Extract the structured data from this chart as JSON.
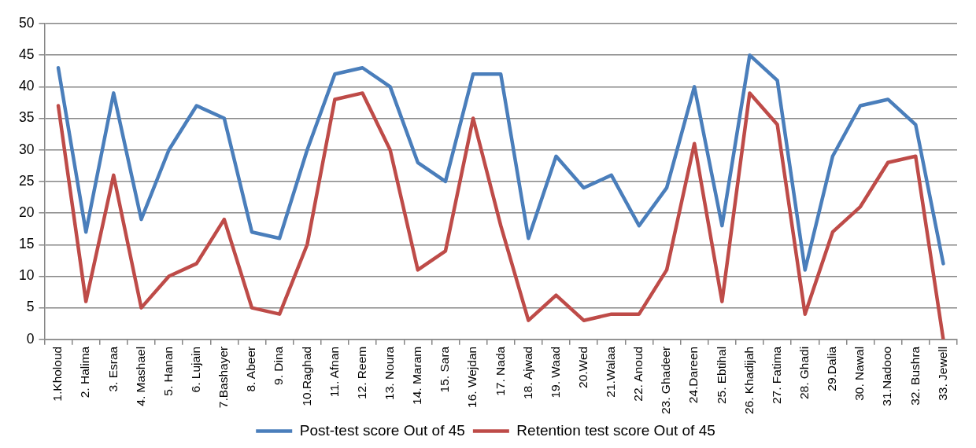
{
  "chart_data": {
    "type": "line",
    "categories": [
      "1.Kholoud",
      "2. Halima",
      "3. Esraa",
      "4. Mashael",
      "5. Hanan",
      "6. Lujain",
      "7.Bashayer",
      "8. Abeer",
      "9. Dina",
      "10.Raghad",
      "11. Afnan",
      "12. Reem",
      "13. Noura",
      "14. Maram",
      "15. Sara",
      "16. Wejdan",
      "17. Nada",
      "18. Ajwad",
      "19. Waad",
      "20.Wed",
      "21.Walaa",
      "22. Anoud",
      "23. Ghadeer",
      "24.Dareen",
      "25. Ebtihal",
      "26. Khadijah",
      "27. Fatima",
      "28. Ghadi",
      "29.Dalia",
      "30. Nawal",
      "31.Nadooo",
      "32. Bushra",
      "33. Jewell"
    ],
    "series": [
      {
        "name": "Post-test score Out of 45",
        "color": "#4a7ebb",
        "values": [
          43,
          17,
          39,
          19,
          30,
          37,
          35,
          17,
          16,
          30,
          42,
          43,
          40,
          28,
          25,
          42,
          42,
          16,
          29,
          24,
          26,
          18,
          24,
          40,
          18,
          45,
          41,
          11,
          29,
          37,
          38,
          34,
          12
        ]
      },
      {
        "name": "Retention test score Out of 45",
        "color": "#be4b48",
        "values": [
          37,
          6,
          26,
          5,
          10,
          12,
          19,
          5,
          4,
          15,
          38,
          39,
          30,
          11,
          14,
          35,
          18,
          3,
          7,
          3,
          4,
          4,
          11,
          31,
          6,
          39,
          34,
          4,
          17,
          21,
          28,
          29,
          0
        ]
      }
    ],
    "ylim": [
      0,
      50
    ],
    "yticks": [
      0,
      5,
      10,
      15,
      20,
      25,
      30,
      35,
      40,
      45,
      50
    ],
    "grid": "y",
    "legend": "bottom",
    "marker": "none",
    "line_style": "solid"
  }
}
